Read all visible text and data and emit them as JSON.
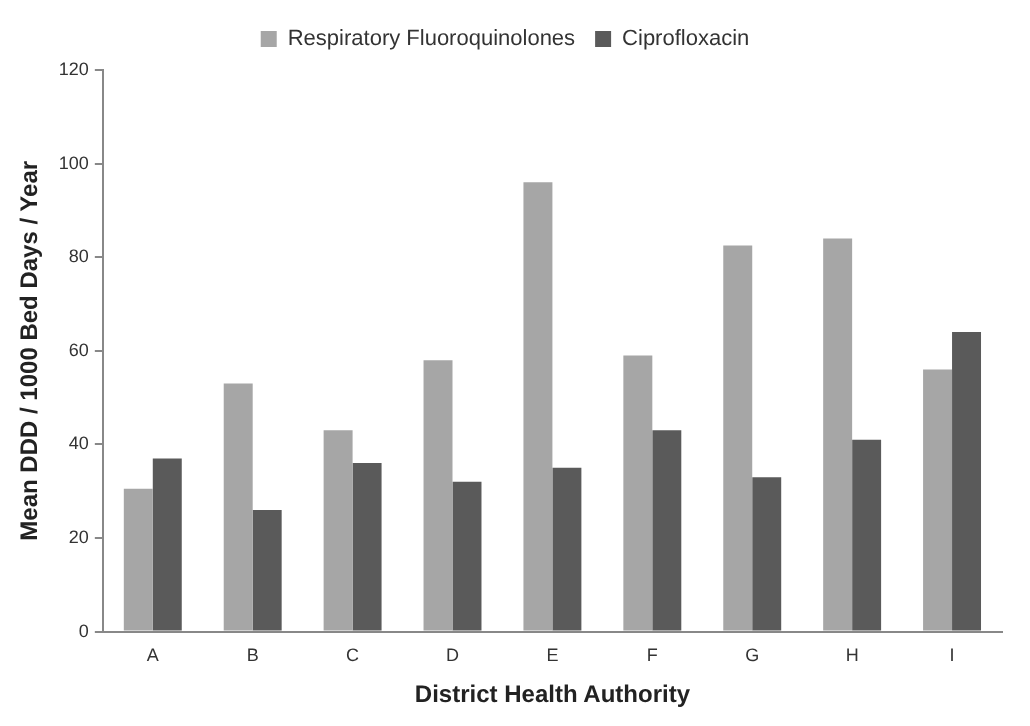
{
  "chart_data": {
    "type": "bar",
    "xlabel": "District Health Authority",
    "ylabel": "Mean DDD / 1000 Bed Days / Year",
    "categories": [
      "A",
      "B",
      "C",
      "D",
      "E",
      "F",
      "G",
      "H",
      "I"
    ],
    "series": [
      {
        "name": "Respiratory Fluoroquinolones",
        "color": "#a6a6a6",
        "values": [
          30.5,
          53,
          43,
          58,
          96,
          59,
          82.5,
          84,
          56
        ]
      },
      {
        "name": "Ciprofloxacin",
        "color": "#5a5a5a",
        "values": [
          37,
          26,
          36,
          32,
          35,
          43,
          33,
          41,
          64
        ]
      }
    ],
    "ylim": [
      0,
      120
    ],
    "yticks": [
      0,
      20,
      40,
      60,
      80,
      100,
      120
    ],
    "grid": false,
    "legend": "top"
  }
}
